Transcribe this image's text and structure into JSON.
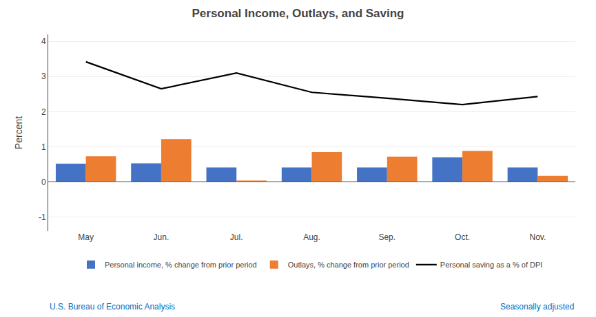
{
  "chart_data": {
    "type": "bar",
    "title": "Personal Income, Outlays, and Saving",
    "categories": [
      "May",
      "Jun.",
      "Jul.",
      "Aug.",
      "Sep.",
      "Oct.",
      "Nov."
    ],
    "series": [
      {
        "name": "Personal income, % change from prior period",
        "type": "bar",
        "color": "#4472C4",
        "values": [
          0.52,
          0.53,
          0.41,
          0.41,
          0.41,
          0.7,
          0.41
        ]
      },
      {
        "name": "Outlays, % change from prior period",
        "type": "bar",
        "color": "#ED7D31",
        "values": [
          0.73,
          1.22,
          0.04,
          0.85,
          0.72,
          0.88,
          0.17
        ]
      },
      {
        "name": "Personal saving as a % of DPI",
        "type": "line",
        "color": "#000000",
        "values": [
          3.42,
          2.65,
          3.1,
          2.55,
          2.38,
          2.2,
          2.43
        ]
      }
    ],
    "ylabel": "Percent",
    "ylim": [
      -1.4,
      4.2
    ],
    "yticks": [
      -1,
      0,
      1,
      2,
      3,
      4
    ],
    "grid": true,
    "legend": "bottom",
    "annotations": [
      {
        "text": "U.S. Bureau of Economic Analysis",
        "color": "#0070C0"
      },
      {
        "text": "Seasonally adjusted",
        "color": "#0070C0"
      }
    ]
  }
}
